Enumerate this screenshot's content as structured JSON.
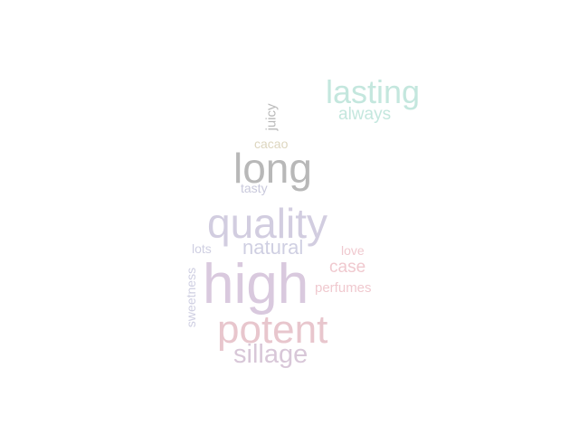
{
  "words": {
    "lasting": {
      "text": "lasting",
      "color": "#c4e7de"
    },
    "always": {
      "text": "always",
      "color": "#c4e7de"
    },
    "juicy": {
      "text": "juicy",
      "color": "#b9b9b9"
    },
    "cacao": {
      "text": "cacao",
      "color": "#ddd6bf"
    },
    "long": {
      "text": "long",
      "color": "#b8b8b8"
    },
    "tasty": {
      "text": "tasty",
      "color": "#c9c9dc"
    },
    "quality": {
      "text": "quality",
      "color": "#d2cde0"
    },
    "lots": {
      "text": "lots",
      "color": "#cfcfe2"
    },
    "natural": {
      "text": "natural",
      "color": "#cfcfe2"
    },
    "love": {
      "text": "love",
      "color": "#f0c9cf"
    },
    "case": {
      "text": "case",
      "color": "#f0c9cf"
    },
    "sweetness": {
      "text": "sweetness",
      "color": "#cfcfe2"
    },
    "high": {
      "text": "high",
      "color": "#d9c9de"
    },
    "perfumes": {
      "text": "perfumes",
      "color": "#f0c9cf"
    },
    "potent": {
      "text": "potent",
      "color": "#e8c6cd"
    },
    "sillage": {
      "text": "sillage",
      "color": "#d8c7d8"
    }
  }
}
